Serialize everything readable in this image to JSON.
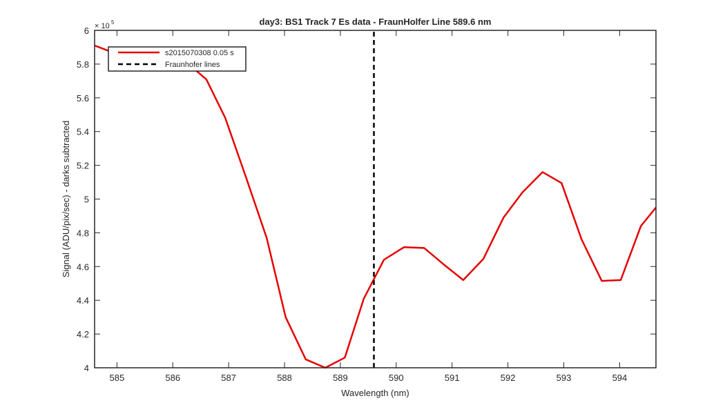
{
  "chart_data": {
    "type": "line",
    "title": "day3: BS1  Track 7 Es data - FraunHolfer Line 589.6 nm",
    "xlabel": "Wavelength (nm)",
    "ylabel": "Signal (ADU/pix/sec) - darks subtracted",
    "y_exponent_label": "× 10^5",
    "xlim": [
      584.6,
      594.65
    ],
    "ylim": [
      4.0,
      6.0
    ],
    "x_ticks": [
      585,
      586,
      587,
      588,
      589,
      590,
      591,
      592,
      593,
      594
    ],
    "y_ticks": [
      4,
      4.2,
      4.4,
      4.6,
      4.8,
      5,
      5.2,
      5.4,
      5.6,
      5.8,
      6
    ],
    "x_tick_labels": [
      "585",
      "586",
      "587",
      "588",
      "589",
      "590",
      "591",
      "592",
      "593",
      "594"
    ],
    "y_tick_labels": [
      "4",
      "4.2",
      "4.4",
      "4.6",
      "4.8",
      "5",
      "5.2",
      "5.4",
      "5.6",
      "5.8",
      "6"
    ],
    "grid": false,
    "legend_position": "top-left",
    "series": [
      {
        "name": "s2015070308 0.05 s",
        "color": "#e60000",
        "style": "solid",
        "x": [
          584.6,
          584.92,
          585.16,
          585.58,
          585.94,
          586.28,
          586.6,
          586.94,
          587.31,
          587.68,
          588.02,
          588.38,
          588.73,
          589.08,
          589.42,
          589.78,
          590.14,
          590.5,
          590.86,
          591.2,
          591.56,
          591.92,
          592.26,
          592.62,
          592.96,
          593.32,
          593.68,
          594.02,
          594.38,
          594.65
        ],
        "y": [
          5.91,
          5.87,
          5.84,
          5.84,
          5.84,
          5.8,
          5.71,
          5.48,
          5.13,
          4.77,
          4.3,
          4.05,
          4.0,
          4.06,
          4.41,
          4.64,
          4.715,
          4.71,
          4.61,
          4.52,
          4.645,
          4.89,
          5.04,
          5.16,
          5.095,
          4.76,
          4.515,
          4.52,
          4.84,
          4.95
        ]
      },
      {
        "name": "Fraunhofer lines",
        "color": "#000000",
        "style": "dashed",
        "x": [
          589.6,
          589.6
        ],
        "y": [
          4.0,
          6.0
        ]
      }
    ]
  }
}
